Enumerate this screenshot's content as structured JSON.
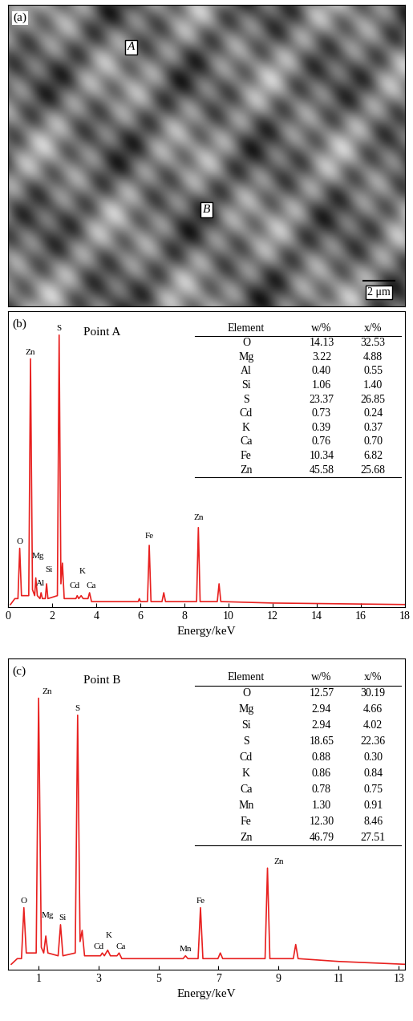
{
  "chart_data": [
    {
      "type": "image",
      "panel": "(a)",
      "labels": [
        "A",
        "B"
      ],
      "scale_bar": "2 μm"
    },
    {
      "type": "line",
      "panel": "(b)",
      "title": "Point A",
      "x_label": "Energy/keV",
      "color": "#e8201f",
      "x": [
        0.1,
        0.3,
        0.44,
        0.52,
        0.6,
        0.93,
        1.01,
        1.1,
        1.2,
        1.25,
        1.32,
        1.44,
        1.49,
        1.55,
        1.68,
        1.74,
        1.8,
        2.23,
        2.31,
        2.39,
        2.46,
        2.54,
        3.07,
        3.13,
        3.2,
        3.31,
        3.4,
        3.62,
        3.69,
        3.78,
        5.9,
        5.95,
        6.0,
        6.32,
        6.4,
        6.48,
        6.98,
        7.06,
        7.14,
        8.55,
        8.63,
        8.71,
        9.49,
        9.57,
        9.65,
        12,
        18
      ],
      "values": [
        1,
        3,
        3,
        20,
        4,
        4,
        84,
        6,
        4,
        10,
        4,
        3,
        5,
        3,
        3,
        8,
        3,
        4,
        92,
        8,
        15,
        3,
        3,
        4,
        3,
        4,
        3,
        3,
        5,
        2,
        2,
        3,
        2,
        2,
        21,
        2,
        2,
        5,
        2,
        2,
        27,
        2,
        2,
        8,
        2,
        1.5,
        1
      ],
      "xlim": [
        0,
        18
      ],
      "xticks": [
        0,
        2,
        4,
        6,
        8,
        10,
        12,
        14,
        16,
        18
      ],
      "ylim": [
        0,
        100
      ],
      "tick_labels": "x",
      "annotations": [
        {
          "text": "O",
          "x": 0.52,
          "y": 21
        },
        {
          "text": "Zn",
          "x": 1.01,
          "y": 85
        },
        {
          "text": "Mg",
          "x": 1.35,
          "y": 16
        },
        {
          "text": "Al",
          "x": 1.45,
          "y": 7
        },
        {
          "text": "Si",
          "x": 1.85,
          "y": 11.5
        },
        {
          "text": "S",
          "x": 2.31,
          "y": 93
        },
        {
          "text": "K",
          "x": 3.35,
          "y": 11
        },
        {
          "text": "Cd",
          "x": 3.0,
          "y": 6
        },
        {
          "text": "Ca",
          "x": 3.75,
          "y": 6
        },
        {
          "text": "Fe",
          "x": 6.4,
          "y": 23
        },
        {
          "text": "Zn",
          "x": 8.63,
          "y": 29
        }
      ],
      "table": {
        "columns": [
          "Element",
          "w/%",
          "x/%"
        ],
        "rows": [
          [
            "O",
            "14.13",
            "32.53"
          ],
          [
            "Mg",
            "3.22",
            "4.88"
          ],
          [
            "Al",
            "0.40",
            "0.55"
          ],
          [
            "Si",
            "1.06",
            "1.40"
          ],
          [
            "S",
            "23.37",
            "26.85"
          ],
          [
            "Cd",
            "0.73",
            "0.24"
          ],
          [
            "K",
            "0.39",
            "0.37"
          ],
          [
            "Ca",
            "0.76",
            "0.70"
          ],
          [
            "Fe",
            "10.34",
            "6.82"
          ],
          [
            "Zn",
            "45.58",
            "25.68"
          ]
        ]
      }
    },
    {
      "type": "line",
      "panel": "(c)",
      "title": "Point B",
      "x_label": "Energy/keV",
      "color": "#e8201f",
      "x": [
        0.1,
        0.3,
        0.44,
        0.52,
        0.6,
        0.93,
        1.01,
        1.1,
        1.18,
        1.25,
        1.32,
        1.66,
        1.74,
        1.82,
        2.23,
        2.31,
        2.39,
        2.46,
        2.54,
        3.07,
        3.13,
        3.2,
        3.31,
        3.4,
        3.62,
        3.69,
        3.78,
        5.82,
        5.9,
        5.98,
        6.32,
        6.4,
        6.48,
        6.98,
        7.06,
        7.14,
        8.55,
        8.63,
        8.71,
        9.49,
        9.57,
        9.65,
        11,
        13.2
      ],
      "values": [
        2,
        4,
        4,
        22,
        6,
        6,
        96,
        8,
        6,
        12,
        6,
        5,
        16,
        5,
        6,
        90,
        10,
        14,
        5,
        5,
        6,
        5,
        7,
        5,
        5,
        6,
        4,
        4,
        5,
        4,
        4,
        22,
        4,
        4,
        6,
        4,
        4,
        36,
        4,
        4,
        9,
        4,
        3,
        2
      ],
      "xlim": [
        0,
        13.2
      ],
      "xticks": [
        1,
        3,
        5,
        7,
        9,
        11,
        13
      ],
      "ylim": [
        0,
        110
      ],
      "tick_labels": "x",
      "annotations": [
        {
          "text": "O",
          "x": 0.52,
          "y": 23
        },
        {
          "text": "Zn",
          "x": 1.3,
          "y": 97
        },
        {
          "text": "Mg",
          "x": 1.3,
          "y": 18
        },
        {
          "text": "Si",
          "x": 1.8,
          "y": 17
        },
        {
          "text": "S",
          "x": 2.31,
          "y": 91
        },
        {
          "text": "K",
          "x": 3.35,
          "y": 11
        },
        {
          "text": "Cd",
          "x": 3.0,
          "y": 7
        },
        {
          "text": "Ca",
          "x": 3.75,
          "y": 7
        },
        {
          "text": "Mn",
          "x": 5.9,
          "y": 6
        },
        {
          "text": "Fe",
          "x": 6.4,
          "y": 23
        },
        {
          "text": "Zn",
          "x": 9.0,
          "y": 37
        }
      ],
      "table": {
        "columns": [
          "Element",
          "w/%",
          "x/%"
        ],
        "rows": [
          [
            "O",
            "12.57",
            "30.19"
          ],
          [
            "Mg",
            "2.94",
            "4.66"
          ],
          [
            "Si",
            "2.94",
            "4.02"
          ],
          [
            "S",
            "18.65",
            "22.36"
          ],
          [
            "Cd",
            "0.88",
            "0.30"
          ],
          [
            "K",
            "0.86",
            "0.84"
          ],
          [
            "Ca",
            "0.78",
            "0.75"
          ],
          [
            "Mn",
            "1.30",
            "0.91"
          ],
          [
            "Fe",
            "12.30",
            "8.46"
          ],
          [
            "Zn",
            "46.79",
            "27.51"
          ]
        ]
      }
    }
  ]
}
